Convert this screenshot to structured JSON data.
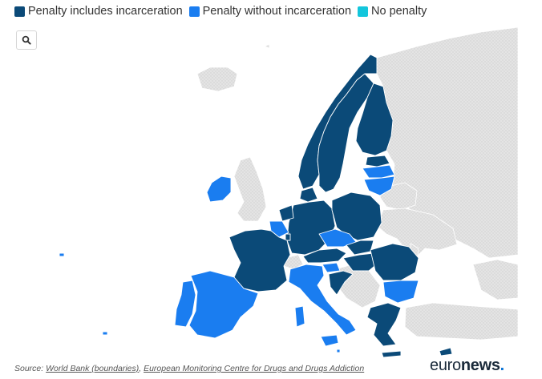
{
  "legend": [
    {
      "label": "Penalty includes incarceration",
      "color": "#0b4a78"
    },
    {
      "label": "Penalty without incarceration",
      "color": "#1a7df0"
    },
    {
      "label": "No penalty",
      "color": "#13c6dc"
    }
  ],
  "colors": {
    "incarceration": "#0b4a78",
    "without_incarceration": "#1a7df0",
    "no_penalty": "#13c6dc",
    "no_data": "#dedede",
    "border": "#ffffff"
  },
  "search": {
    "icon": "search-icon"
  },
  "source": {
    "prefix": "Source: ",
    "link1": "World Bank (boundaries)",
    "separator": ", ",
    "link2": "European Monitoring Centre for Drugs and Drugs Addiction"
  },
  "brand": {
    "part1": "euro",
    "part2": "news",
    "dot": "."
  },
  "countries": [
    {
      "name": "Norway",
      "category": "incarceration"
    },
    {
      "name": "Sweden",
      "category": "incarceration"
    },
    {
      "name": "Finland",
      "category": "incarceration"
    },
    {
      "name": "Estonia",
      "category": "incarceration"
    },
    {
      "name": "Latvia",
      "category": "without_incarceration"
    },
    {
      "name": "Lithuania",
      "category": "without_incarceration"
    },
    {
      "name": "Ireland",
      "category": "without_incarceration"
    },
    {
      "name": "Denmark",
      "category": "incarceration"
    },
    {
      "name": "Germany",
      "category": "incarceration"
    },
    {
      "name": "Poland",
      "category": "incarceration"
    },
    {
      "name": "Netherlands",
      "category": "incarceration"
    },
    {
      "name": "Belgium",
      "category": "without_incarceration"
    },
    {
      "name": "France",
      "category": "incarceration"
    },
    {
      "name": "Czechia",
      "category": "without_incarceration"
    },
    {
      "name": "Slovakia",
      "category": "incarceration"
    },
    {
      "name": "Austria",
      "category": "incarceration"
    },
    {
      "name": "Hungary",
      "category": "incarceration"
    },
    {
      "name": "Romania",
      "category": "incarceration"
    },
    {
      "name": "Bulgaria",
      "category": "without_incarceration"
    },
    {
      "name": "Slovenia",
      "category": "without_incarceration"
    },
    {
      "name": "Croatia",
      "category": "incarceration"
    },
    {
      "name": "Italy",
      "category": "without_incarceration"
    },
    {
      "name": "Spain",
      "category": "without_incarceration"
    },
    {
      "name": "Portugal",
      "category": "without_incarceration"
    },
    {
      "name": "Greece",
      "category": "incarceration"
    },
    {
      "name": "Cyprus",
      "category": "incarceration"
    },
    {
      "name": "Malta",
      "category": "without_incarceration"
    },
    {
      "name": "Luxembourg",
      "category": "incarceration"
    }
  ]
}
